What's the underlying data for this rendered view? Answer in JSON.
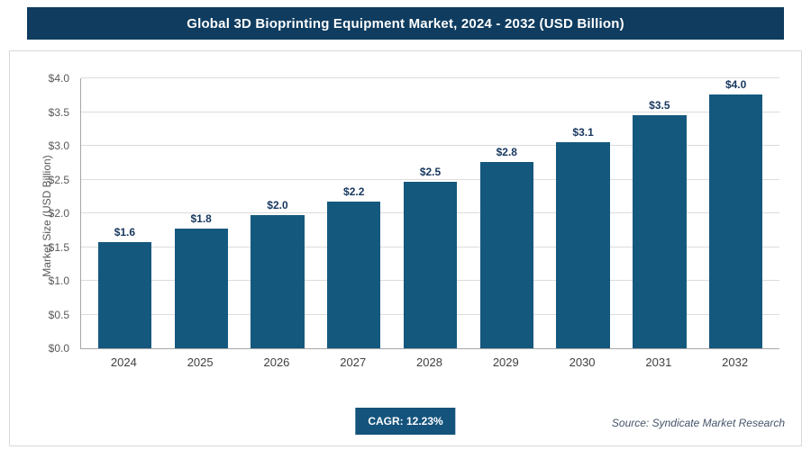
{
  "header": {
    "title": "Global 3D Bioprinting Equipment Market, 2024 - 2032 (USD Billion)"
  },
  "chart_data": {
    "type": "bar",
    "title": "Global 3D Bioprinting Equipment Market, 2024 - 2032 (USD Billion)",
    "categories": [
      "2024",
      "2025",
      "2026",
      "2027",
      "2028",
      "2029",
      "2030",
      "2031",
      "2032"
    ],
    "values": [
      1.6,
      1.8,
      2.0,
      2.2,
      2.5,
      2.8,
      3.1,
      3.5,
      4.0
    ],
    "bar_labels": [
      "$1.6",
      "$1.8",
      "$2.0",
      "$2.2",
      "$2.5",
      "$2.8",
      "$3.1",
      "$3.5",
      "$4.0"
    ],
    "xlabel": "",
    "ylabel": "Market Size (USD Billion)",
    "ylim": [
      0,
      4.0
    ],
    "ytick_labels": [
      "$0.0",
      "$0.5",
      "$1.0",
      "$1.5",
      "$2.0",
      "$2.5",
      "$3.0",
      "$3.5",
      "$4.0"
    ],
    "grid": true,
    "legend": "none",
    "bar_color": "#15587e"
  },
  "footer": {
    "cagr_label": "CAGR: 12.23%",
    "source": "Source: Syndicate Market Research"
  },
  "colors": {
    "header_bg": "#0f3c5f",
    "bar": "#15587e",
    "badge_bg": "#14537c",
    "gridline": "#dcdcdc",
    "tick_text": "#595959",
    "value_text": "#17375e"
  }
}
